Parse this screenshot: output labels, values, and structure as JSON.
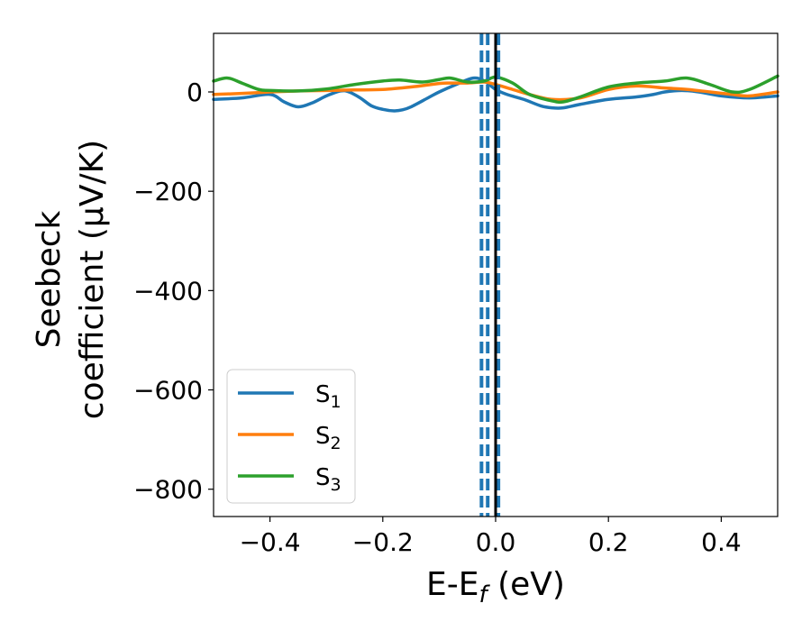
{
  "chart_data": {
    "type": "line",
    "xlabel": "E-E",
    "xlabel_sub": "f",
    "xlabel_unit": " (eV)",
    "ylabel_line1": "Seebeck",
    "ylabel_line2": "coefficient  (μV/K)",
    "xlim": [
      -0.5,
      0.5
    ],
    "ylim": [
      -855,
      118
    ],
    "xticks": [
      -0.4,
      -0.2,
      0.0,
      0.2,
      0.4
    ],
    "xtick_labels": [
      "−0.4",
      "−0.2",
      "0.0",
      "0.2",
      "0.4"
    ],
    "yticks": [
      0,
      -200,
      -400,
      -600,
      -800
    ],
    "ytick_labels": [
      "0",
      "−200",
      "−400",
      "−600",
      "−800"
    ],
    "grid": false,
    "legend_position": "lower-left",
    "series": [
      {
        "name": "S",
        "subscript": "1",
        "color": "#1f77b4",
        "x": [
          -0.5,
          -0.45,
          -0.4,
          -0.375,
          -0.35,
          -0.325,
          -0.3,
          -0.275,
          -0.26,
          -0.24,
          -0.22,
          -0.2,
          -0.18,
          -0.165,
          -0.15,
          -0.12,
          -0.1,
          -0.07,
          -0.04,
          -0.02,
          0.0,
          0.02,
          0.05,
          0.08,
          0.1,
          0.12,
          0.15,
          0.2,
          0.25,
          0.28,
          0.3,
          0.33,
          0.36,
          0.4,
          0.45,
          0.5
        ],
        "y": [
          -15,
          -12,
          -5,
          -20,
          -30,
          -22,
          -8,
          2,
          0,
          -12,
          -28,
          -35,
          -38,
          -36,
          -30,
          -12,
          0,
          15,
          28,
          22,
          5,
          -5,
          -15,
          -28,
          -32,
          -32,
          -25,
          -15,
          -10,
          -5,
          0,
          3,
          0,
          -8,
          -12,
          -8
        ]
      },
      {
        "name": "S",
        "subscript": "2",
        "color": "#ff7f0e",
        "x": [
          -0.5,
          -0.45,
          -0.4,
          -0.35,
          -0.3,
          -0.25,
          -0.2,
          -0.15,
          -0.1,
          -0.08,
          -0.05,
          -0.02,
          0.0,
          0.03,
          0.06,
          0.1,
          0.15,
          0.2,
          0.25,
          0.3,
          0.34,
          0.38,
          0.42,
          0.45,
          0.5
        ],
        "y": [
          -5,
          -3,
          0,
          2,
          3,
          4,
          5,
          10,
          17,
          18,
          18,
          20,
          15,
          5,
          -5,
          -15,
          -12,
          5,
          12,
          8,
          5,
          0,
          -5,
          -8,
          0
        ]
      },
      {
        "name": "S",
        "subscript": "3",
        "color": "#2ca02c",
        "x": [
          -0.5,
          -0.475,
          -0.45,
          -0.42,
          -0.4,
          -0.35,
          -0.3,
          -0.25,
          -0.2,
          -0.17,
          -0.13,
          -0.1,
          -0.08,
          -0.05,
          -0.02,
          0.0,
          0.03,
          0.06,
          0.1,
          0.12,
          0.15,
          0.2,
          0.25,
          0.3,
          0.34,
          0.38,
          0.42,
          0.45,
          0.5
        ],
        "y": [
          22,
          28,
          18,
          5,
          3,
          2,
          6,
          15,
          22,
          24,
          20,
          25,
          28,
          20,
          22,
          30,
          18,
          -5,
          -18,
          -20,
          -10,
          10,
          18,
          22,
          28,
          15,
          0,
          5,
          32
        ]
      }
    ],
    "vlines": [
      {
        "x": -0.025,
        "style": "dashed",
        "color": "#1f77b4"
      },
      {
        "x": -0.014,
        "style": "dashed",
        "color": "#1f77b4"
      },
      {
        "x": 0.005,
        "style": "dashed",
        "color": "#1f77b4"
      },
      {
        "x": 0.0,
        "style": "solid",
        "color": "#000000"
      }
    ]
  }
}
